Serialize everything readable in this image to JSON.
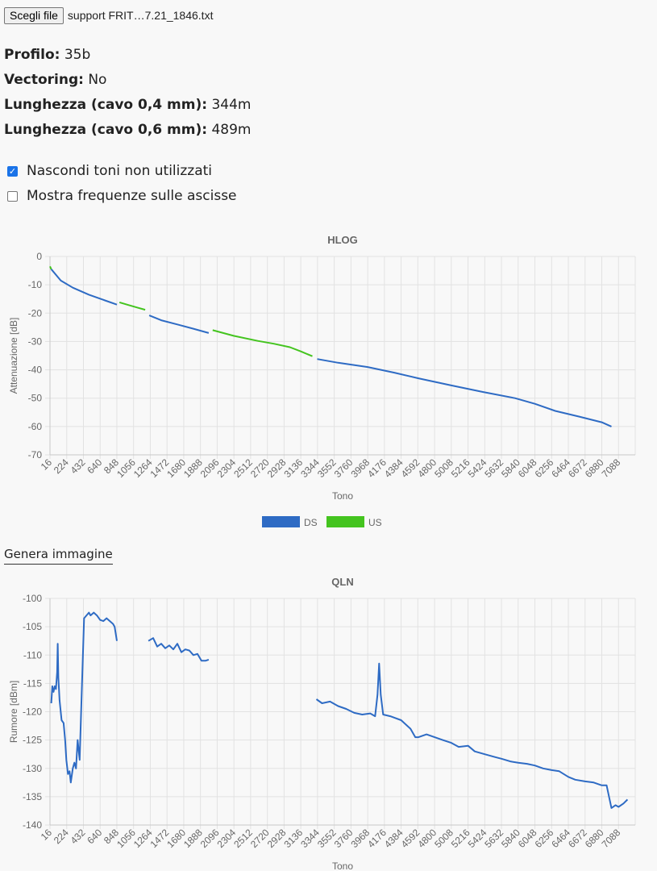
{
  "file": {
    "button_label": "Scegli file",
    "file_name": "support FRIT…7.21_1846.txt"
  },
  "info": [
    {
      "label": "Profilo:",
      "value": "35b"
    },
    {
      "label": "Vectoring:",
      "value": "No"
    },
    {
      "label": "Lunghezza (cavo 0,4 mm):",
      "value": "344m"
    },
    {
      "label": "Lunghezza (cavo 0,6 mm):",
      "value": "489m"
    }
  ],
  "options": [
    {
      "label": "Nascondi toni non utilizzati",
      "checked": true
    },
    {
      "label": "Mostra frequenze sulle ascisse",
      "checked": false
    }
  ],
  "generate_label": "Genera immagine",
  "chart_data": [
    {
      "type": "line",
      "title": "HLOG",
      "xlabel": "Tono",
      "ylabel": "Attenuazione [dB]",
      "ylim": [
        -70,
        0
      ],
      "y_ticks": [
        0,
        -10,
        -20,
        -30,
        -40,
        -50,
        -60,
        -70
      ],
      "x_ticks": [
        "16",
        "224",
        "432",
        "640",
        "848",
        "1056",
        "1264",
        "1472",
        "1680",
        "1888",
        "2096",
        "2304",
        "2512",
        "2720",
        "2928",
        "3136",
        "3344",
        "3552",
        "3760",
        "3968",
        "4176",
        "4384",
        "4592",
        "4800",
        "5008",
        "5216",
        "5424",
        "5632",
        "5840",
        "6048",
        "6256",
        "6464",
        "6672",
        "6880",
        "7088"
      ],
      "legend": "bottom",
      "series": [
        {
          "name": "DS",
          "color": "#2e6bc4",
          "segments": [
            [
              [
                32,
                -4.5
              ],
              [
                150,
                -8.5
              ],
              [
                300,
                -11
              ],
              [
                500,
                -13.5
              ],
              [
                700,
                -15.5
              ],
              [
                848,
                -17
              ]
            ],
            [
              [
                1250,
                -20.8
              ],
              [
                1400,
                -22.5
              ],
              [
                1600,
                -24
              ],
              [
                1800,
                -25.5
              ],
              [
                1990,
                -27
              ]
            ],
            [
              [
                3340,
                -36.2
              ],
              [
                3600,
                -37.5
              ],
              [
                3968,
                -39
              ],
              [
                4300,
                -41
              ],
              [
                4600,
                -43
              ],
              [
                5008,
                -45.5
              ],
              [
                5400,
                -47.8
              ],
              [
                5800,
                -50
              ],
              [
                6048,
                -52
              ],
              [
                6300,
                -54.5
              ],
              [
                6600,
                -56.5
              ],
              [
                6880,
                -58.5
              ],
              [
                7000,
                -60
              ]
            ]
          ]
        },
        {
          "name": "US",
          "color": "#44c41f",
          "segments": [
            [
              [
                16,
                -3.5
              ],
              [
                32,
                -4.5
              ]
            ],
            [
              [
                880,
                -16.2
              ],
              [
                1000,
                -17.2
              ],
              [
                1100,
                -18
              ],
              [
                1200,
                -18.8
              ]
            ],
            [
              [
                2040,
                -26
              ],
              [
                2300,
                -28
              ],
              [
                2600,
                -29.8
              ],
              [
                2800,
                -30.8
              ],
              [
                3000,
                -32
              ],
              [
                3136,
                -33.5
              ],
              [
                3280,
                -35.2
              ]
            ]
          ]
        }
      ]
    },
    {
      "type": "line",
      "title": "QLN",
      "xlabel": "Tono",
      "ylabel": "Rumore [dBm]",
      "ylim": [
        -140,
        -100
      ],
      "y_ticks": [
        -100,
        -105,
        -110,
        -115,
        -120,
        -125,
        -130,
        -135,
        -140
      ],
      "x_ticks": [
        "16",
        "224",
        "432",
        "640",
        "848",
        "1056",
        "1264",
        "1472",
        "1680",
        "1888",
        "2096",
        "2304",
        "2512",
        "2720",
        "2928",
        "3136",
        "3344",
        "3552",
        "3760",
        "3968",
        "4176",
        "4384",
        "4592",
        "4800",
        "5008",
        "5216",
        "5424",
        "5632",
        "5840",
        "6048",
        "6256",
        "6464",
        "6672",
        "6880",
        "7088"
      ],
      "series": [
        {
          "name": "DS",
          "color": "#2e6bc4",
          "segments": [
            [
              [
                32,
                -118.5
              ],
              [
                45,
                -115.5
              ],
              [
                60,
                -116.5
              ],
              [
                75,
                -115.5
              ],
              [
                90,
                -116
              ],
              [
                105,
                -113
              ],
              [
                112,
                -108
              ],
              [
                120,
                -114
              ],
              [
                135,
                -118
              ],
              [
                160,
                -121.5
              ],
              [
                185,
                -122
              ],
              [
                205,
                -125
              ],
              [
                220,
                -128.5
              ],
              [
                240,
                -131
              ],
              [
                260,
                -130.5
              ],
              [
                275,
                -132.5
              ],
              [
                300,
                -130
              ],
              [
                320,
                -129
              ],
              [
                340,
                -130
              ],
              [
                360,
                -125
              ],
              [
                385,
                -128.5
              ],
              [
                410,
                -117
              ],
              [
                440,
                -103.5
              ],
              [
                470,
                -103
              ],
              [
                500,
                -102.5
              ],
              [
                520,
                -103
              ],
              [
                560,
                -102.5
              ],
              [
                600,
                -103
              ],
              [
                640,
                -103.8
              ],
              [
                680,
                -104
              ],
              [
                720,
                -103.5
              ],
              [
                760,
                -104
              ],
              [
                800,
                -104.5
              ],
              [
                820,
                -105
              ],
              [
                848,
                -107.5
              ]
            ],
            [
              [
                1240,
                -107.5
              ],
              [
                1300,
                -107
              ],
              [
                1350,
                -108.5
              ],
              [
                1400,
                -108
              ],
              [
                1450,
                -108.8
              ],
              [
                1500,
                -108.3
              ],
              [
                1550,
                -109
              ],
              [
                1600,
                -108
              ],
              [
                1650,
                -109.5
              ],
              [
                1700,
                -109
              ],
              [
                1750,
                -109.2
              ],
              [
                1800,
                -110
              ],
              [
                1850,
                -109.8
              ],
              [
                1900,
                -111
              ],
              [
                1950,
                -111
              ],
              [
                1990,
                -110.8
              ]
            ],
            [
              [
                3330,
                -117.8
              ],
              [
                3400,
                -118.5
              ],
              [
                3500,
                -118.2
              ],
              [
                3600,
                -119
              ],
              [
                3700,
                -119.5
              ],
              [
                3800,
                -120.2
              ],
              [
                3900,
                -120.5
              ],
              [
                4000,
                -120.3
              ],
              [
                4060,
                -120.8
              ],
              [
                4090,
                -117
              ],
              [
                4110,
                -111.5
              ],
              [
                4130,
                -117
              ],
              [
                4160,
                -120.5
              ],
              [
                4250,
                -120.8
              ],
              [
                4384,
                -121.5
              ],
              [
                4500,
                -123
              ],
              [
                4560,
                -124.5
              ],
              [
                4600,
                -124.5
              ],
              [
                4700,
                -124
              ],
              [
                4800,
                -124.5
              ],
              [
                4900,
                -125
              ],
              [
                5008,
                -125.5
              ],
              [
                5100,
                -126.2
              ],
              [
                5216,
                -126
              ],
              [
                5300,
                -127
              ],
              [
                5424,
                -127.5
              ],
              [
                5550,
                -128
              ],
              [
                5632,
                -128.3
              ],
              [
                5750,
                -128.8
              ],
              [
                5840,
                -129
              ],
              [
                5950,
                -129.2
              ],
              [
                6048,
                -129.5
              ],
              [
                6150,
                -130
              ],
              [
                6256,
                -130.3
              ],
              [
                6350,
                -130.5
              ],
              [
                6464,
                -131.5
              ],
              [
                6550,
                -132
              ],
              [
                6672,
                -132.3
              ],
              [
                6780,
                -132.5
              ],
              [
                6880,
                -133
              ],
              [
                6940,
                -133
              ],
              [
                6970,
                -135
              ],
              [
                7000,
                -137
              ],
              [
                7050,
                -136.5
              ],
              [
                7088,
                -136.8
              ],
              [
                7150,
                -136.2
              ],
              [
                7200,
                -135.5
              ]
            ]
          ]
        }
      ]
    }
  ]
}
